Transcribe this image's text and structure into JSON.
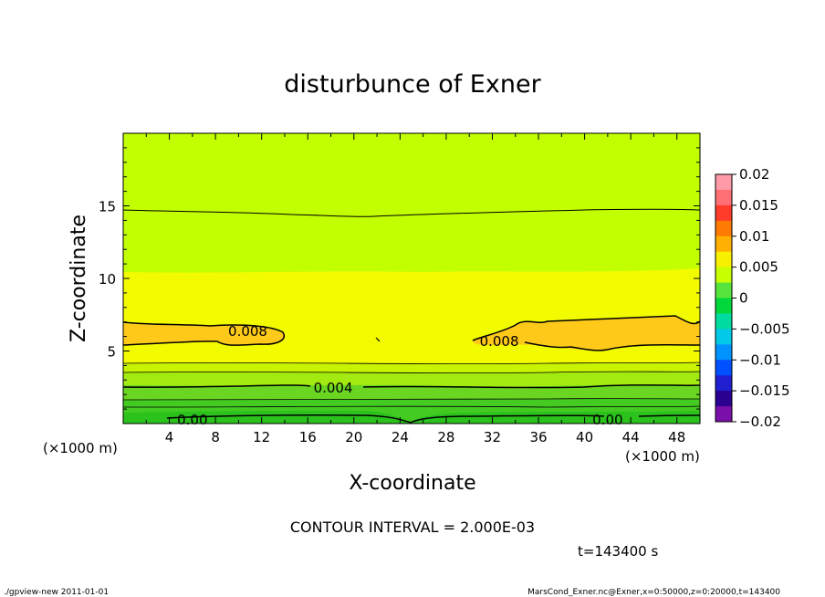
{
  "chart_data": {
    "type": "contour",
    "title": "disturbunce of Exner",
    "xlabel": "X-coordinate",
    "ylabel": "Z-coordinate",
    "x_unit": "(×1000 m)",
    "z_unit": "(×1000 m)",
    "xlim": [
      0,
      50
    ],
    "ylim": [
      0,
      20
    ],
    "x_ticks": [
      "4",
      "8",
      "12",
      "16",
      "20",
      "24",
      "28",
      "32",
      "36",
      "40",
      "44",
      "48"
    ],
    "y_ticks": [
      "5",
      "10",
      "15"
    ],
    "contour_interval_text": "CONTOUR INTERVAL = 2.000E-03",
    "contour_labels": [
      {
        "text": "0.008",
        "x": 10.8,
        "z": 6.3
      },
      {
        "text": "0.008",
        "x": 32.6,
        "z": 5.6
      },
      {
        "text": "0.004",
        "x": 18.2,
        "z": 2.4
      },
      {
        "text": "0.00",
        "x": 6.0,
        "z": 0.2
      },
      {
        "text": "0.00",
        "x": 42.0,
        "z": 0.2
      }
    ],
    "colorbar": {
      "ticks": [
        "0.02",
        "0.015",
        "0.01",
        "0.005",
        "0",
        "−0.005",
        "−0.01",
        "−0.015",
        "−0.02"
      ],
      "range": [
        -0.02,
        0.02
      ],
      "colors": [
        "#ff9aa8",
        "#ff6f73",
        "#ff3b2a",
        "#ff7a00",
        "#ffb000",
        "#f7f000",
        "#c8ff00",
        "#56e43c",
        "#00d73a",
        "#00dba0",
        "#00c8e6",
        "#0093ff",
        "#0050ff",
        "#2020d0",
        "#2a0090",
        "#7a10aa"
      ]
    },
    "bands": [
      {
        "range": [
          -0.002,
          0.0
        ],
        "color": "#22c21e",
        "z": [
          0,
          1.0
        ]
      },
      {
        "range": [
          0.0,
          0.002
        ],
        "color": "#5fda22",
        "z": [
          1.0,
          2.3
        ]
      },
      {
        "range": [
          0.002,
          0.004
        ],
        "color": "#93ea12",
        "z": [
          2.3,
          3.6
        ]
      },
      {
        "range": [
          0.004,
          0.006
        ],
        "color": "#d2ff00",
        "z": [
          3.6,
          10.0
        ]
      },
      {
        "range": [
          0.006,
          0.008
        ],
        "color": "#fafc00",
        "z": [
          5.0,
          10.0
        ]
      },
      {
        "range": [
          0.008,
          0.01
        ],
        "color": "#ffc81a",
        "z": [
          5.0,
          7.0
        ]
      }
    ]
  },
  "footer": {
    "time": "t=143400 s",
    "left": "./gpview-new  2011-01-01",
    "right": "MarsCond_Exner.nc@Exner,x=0:50000,z=0:20000,t=143400"
  }
}
